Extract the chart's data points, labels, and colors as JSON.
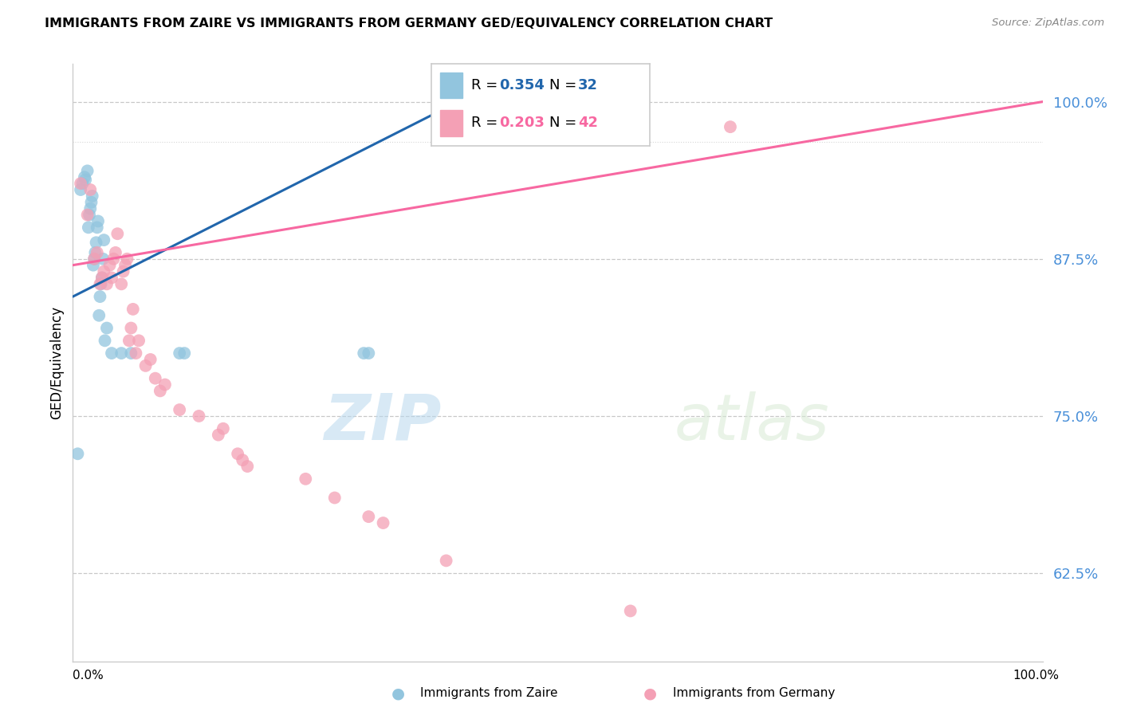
{
  "title": "IMMIGRANTS FROM ZAIRE VS IMMIGRANTS FROM GERMANY GED/EQUIVALENCY CORRELATION CHART",
  "source": "Source: ZipAtlas.com",
  "ylabel": "GED/Equivalency",
  "zaire_R": 0.354,
  "zaire_N": 32,
  "germany_R": 0.203,
  "germany_N": 42,
  "zaire_color": "#92c5de",
  "germany_color": "#f4a0b5",
  "zaire_line_color": "#2166ac",
  "germany_line_color": "#f768a1",
  "watermark_zip": "ZIP",
  "watermark_atlas": "atlas",
  "xlim": [
    0.0,
    1.0
  ],
  "ylim": [
    0.555,
    1.03
  ],
  "y_ticks": [
    0.625,
    0.75,
    0.875,
    1.0
  ],
  "y_tick_labels": [
    "62.5%",
    "75.0%",
    "87.5%",
    "100.0%"
  ],
  "zaire_x": [
    0.005,
    0.008,
    0.01,
    0.012,
    0.013,
    0.015,
    0.016,
    0.017,
    0.018,
    0.019,
    0.02,
    0.021,
    0.022,
    0.023,
    0.024,
    0.025,
    0.026,
    0.027,
    0.028,
    0.029,
    0.03,
    0.031,
    0.032,
    0.033,
    0.035,
    0.04,
    0.05,
    0.06,
    0.11,
    0.115,
    0.3,
    0.305
  ],
  "zaire_y": [
    0.72,
    0.93,
    0.935,
    0.94,
    0.938,
    0.945,
    0.9,
    0.91,
    0.915,
    0.92,
    0.925,
    0.87,
    0.875,
    0.88,
    0.888,
    0.9,
    0.905,
    0.83,
    0.845,
    0.855,
    0.86,
    0.875,
    0.89,
    0.81,
    0.82,
    0.8,
    0.8,
    0.8,
    0.8,
    0.8,
    0.8,
    0.8
  ],
  "germany_x": [
    0.008,
    0.015,
    0.018,
    0.022,
    0.025,
    0.028,
    0.03,
    0.032,
    0.035,
    0.038,
    0.04,
    0.042,
    0.044,
    0.046,
    0.05,
    0.052,
    0.054,
    0.056,
    0.058,
    0.06,
    0.062,
    0.065,
    0.068,
    0.075,
    0.08,
    0.085,
    0.09,
    0.095,
    0.11,
    0.13,
    0.15,
    0.155,
    0.17,
    0.175,
    0.18,
    0.24,
    0.27,
    0.305,
    0.32,
    0.385,
    0.575,
    0.678
  ],
  "germany_y": [
    0.935,
    0.91,
    0.93,
    0.875,
    0.88,
    0.855,
    0.86,
    0.865,
    0.855,
    0.87,
    0.86,
    0.875,
    0.88,
    0.895,
    0.855,
    0.865,
    0.87,
    0.875,
    0.81,
    0.82,
    0.835,
    0.8,
    0.81,
    0.79,
    0.795,
    0.78,
    0.77,
    0.775,
    0.755,
    0.75,
    0.735,
    0.74,
    0.72,
    0.715,
    0.71,
    0.7,
    0.685,
    0.67,
    0.665,
    0.635,
    0.595,
    0.98
  ]
}
